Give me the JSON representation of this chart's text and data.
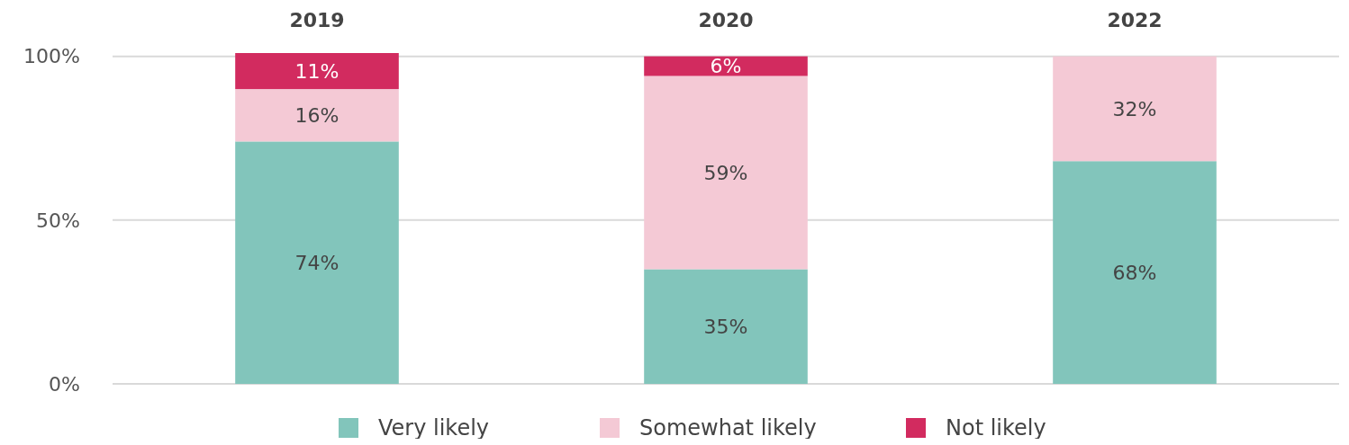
{
  "chart_data": {
    "type": "bar",
    "stacked": true,
    "categories": [
      "2019",
      "2020",
      "2022"
    ],
    "series": [
      {
        "name": "Very likely",
        "color": "#82c5bb",
        "values": [
          74,
          35,
          68
        ],
        "value_labels": [
          "74%",
          "35%",
          "68%"
        ]
      },
      {
        "name": "Somewhat likely",
        "color": "#f4c9d5",
        "values": [
          16,
          59,
          32
        ],
        "value_labels": [
          "16%",
          "59%",
          "32%"
        ]
      },
      {
        "name": "Not likely",
        "color": "#d22b5f",
        "values": [
          11,
          6,
          null
        ],
        "value_labels": [
          "11%",
          "6%",
          null
        ]
      }
    ],
    "ylim": [
      0,
      101
    ],
    "yticks": [
      {
        "value": 0,
        "label": "0%"
      },
      {
        "value": 50,
        "label": "50%"
      },
      {
        "value": 100,
        "label": "100%"
      }
    ],
    "grid": "y",
    "legend": "bottom"
  }
}
